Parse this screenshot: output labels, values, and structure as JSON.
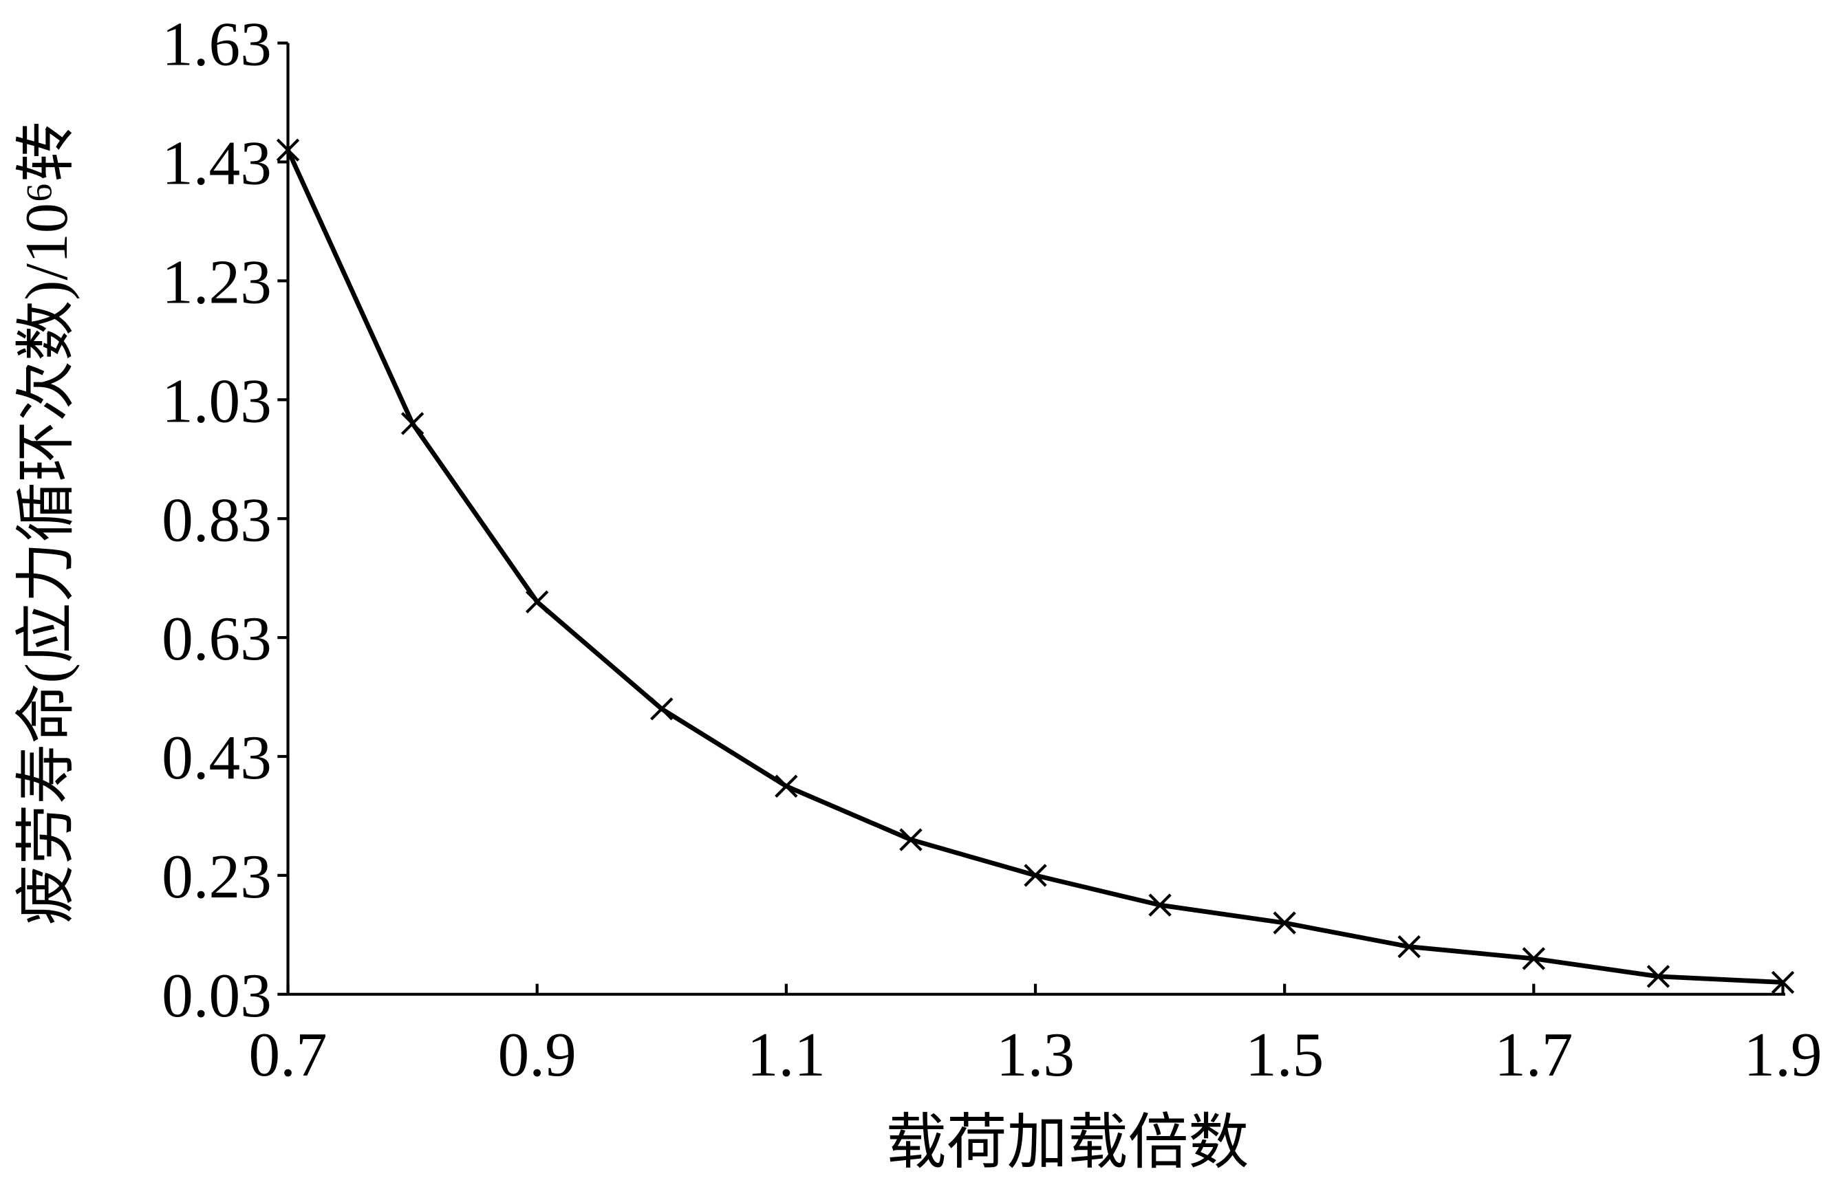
{
  "chart_data": {
    "type": "line",
    "x_label": "载荷加载倍数",
    "y_label": "疲劳寿命(应力循环次数)/10⁶转",
    "x": [
      0.7,
      0.8,
      0.9,
      1.0,
      1.1,
      1.2,
      1.3,
      1.4,
      1.5,
      1.6,
      1.7,
      1.8,
      1.9
    ],
    "values": [
      1.45,
      0.99,
      0.69,
      0.51,
      0.38,
      0.29,
      0.23,
      0.18,
      0.15,
      0.11,
      0.09,
      0.06,
      0.05
    ],
    "color": "#000000",
    "marker": "x",
    "xlim": [
      0.7,
      1.9
    ],
    "xticks": [
      0.7,
      0.9,
      1.1,
      1.3,
      1.5,
      1.7,
      1.9
    ],
    "ylim": [
      0.03,
      1.63
    ],
    "yticks": [
      {
        "value": 0.03,
        "label": "0.03"
      },
      {
        "value": 0.23,
        "label": "0.23"
      },
      {
        "value": 0.43,
        "label": "0.43"
      },
      {
        "value": 0.63,
        "label": "0.63"
      },
      {
        "value": 0.83,
        "label": "0.83"
      },
      {
        "value": 1.03,
        "label": "1.03"
      },
      {
        "value": 1.23,
        "label": "1.23"
      },
      {
        "value": 1.43,
        "label": "1.43"
      },
      {
        "value": 1.63,
        "label": "1.63"
      }
    ],
    "grid": false
  }
}
